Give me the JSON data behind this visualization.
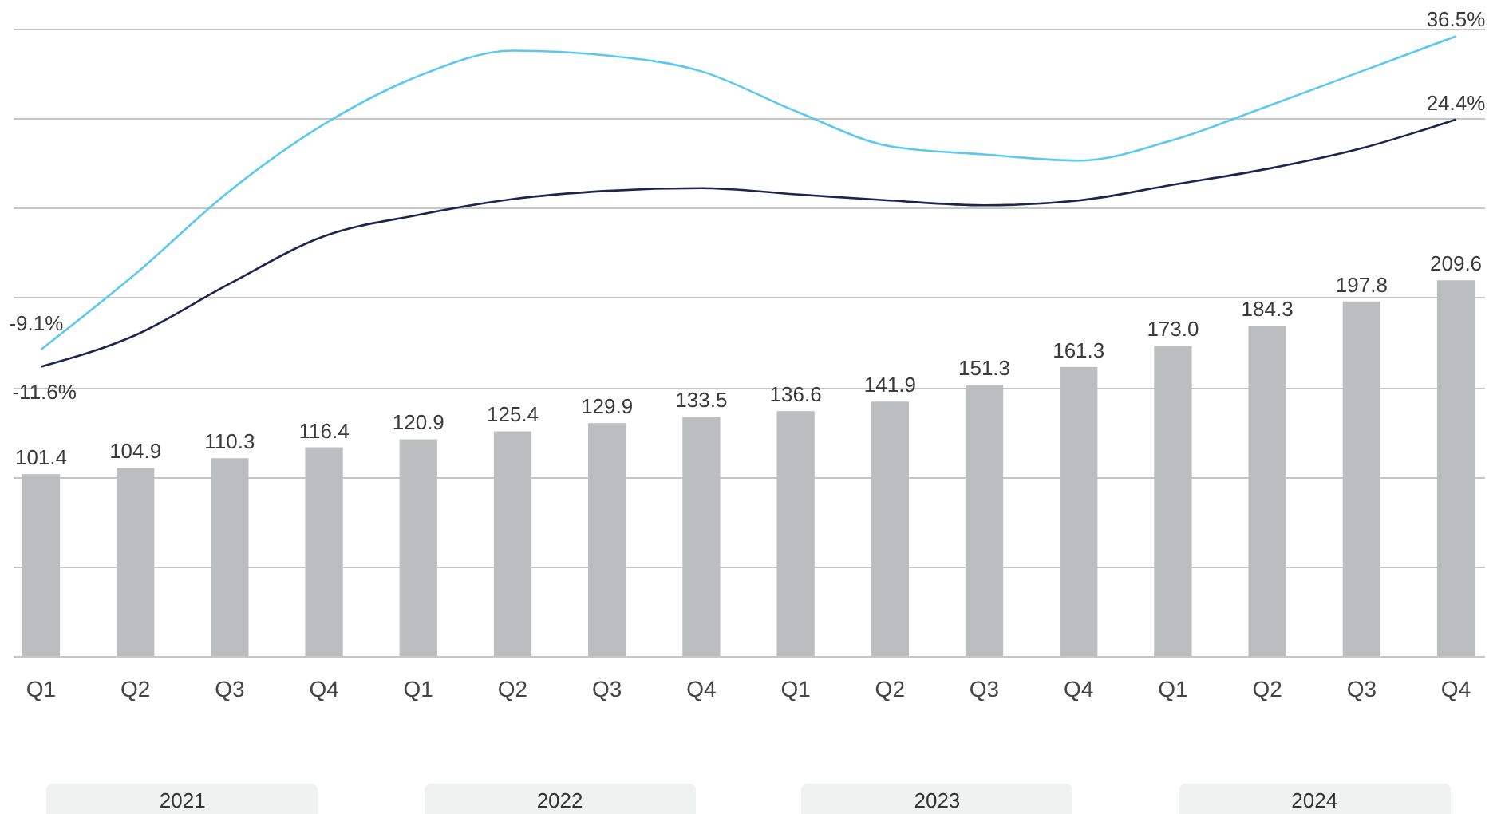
{
  "chart_data": {
    "type": "bar",
    "categories": [
      "Q1",
      "Q2",
      "Q3",
      "Q4",
      "Q1",
      "Q2",
      "Q3",
      "Q4",
      "Q1",
      "Q2",
      "Q3",
      "Q4",
      "Q1",
      "Q2",
      "Q3",
      "Q4"
    ],
    "values": [
      101.4,
      104.9,
      110.3,
      116.4,
      120.9,
      125.4,
      129.9,
      133.5,
      136.6,
      141.9,
      151.3,
      161.3,
      173.0,
      184.3,
      197.8,
      209.6
    ],
    "color": "#bcbdbf",
    "value_labels": [
      "101.4",
      "104.9",
      "110.3",
      "116.4",
      "120.9",
      "125.4",
      "129.9",
      "133.5",
      "136.6",
      "141.9",
      "151.3",
      "161.3",
      "173.0",
      "184.3",
      "197.8",
      "209.6"
    ],
    "ylim": [
      0,
      350
    ],
    "yticks": [
      0,
      50,
      100,
      150,
      200,
      250,
      300,
      350
    ],
    "grid": "y",
    "tick_labels": "x",
    "y2lim": [
      -53.7,
      37.6
    ],
    "series": [
      {
        "type": "line",
        "axis": "y2",
        "color": "#5bc8ef",
        "values": [
          -9.1,
          1.9,
          14,
          23.7,
          30.7,
          34.4,
          33.7,
          31.4,
          25.6,
          20.5,
          19.3,
          18.4,
          21.4,
          26.3,
          31.4,
          36.5
        ],
        "value_labels": [
          "-9.1%",
          null,
          null,
          null,
          null,
          null,
          null,
          null,
          null,
          null,
          null,
          null,
          null,
          null,
          null,
          "36.5%"
        ]
      },
      {
        "type": "line",
        "axis": "y2",
        "color": "#1b2550",
        "values": [
          -11.6,
          -7,
          0.5,
          7.4,
          10.5,
          12.8,
          14,
          14.4,
          13.5,
          12.6,
          11.9,
          12.6,
          14.9,
          17.2,
          20.2,
          24.4
        ],
        "value_labels": [
          "-11.6%",
          null,
          null,
          null,
          null,
          null,
          null,
          null,
          null,
          null,
          null,
          null,
          null,
          null,
          null,
          "24.4%"
        ]
      }
    ],
    "annotations": [
      "2021",
      "2022",
      "2023",
      "2024"
    ]
  }
}
